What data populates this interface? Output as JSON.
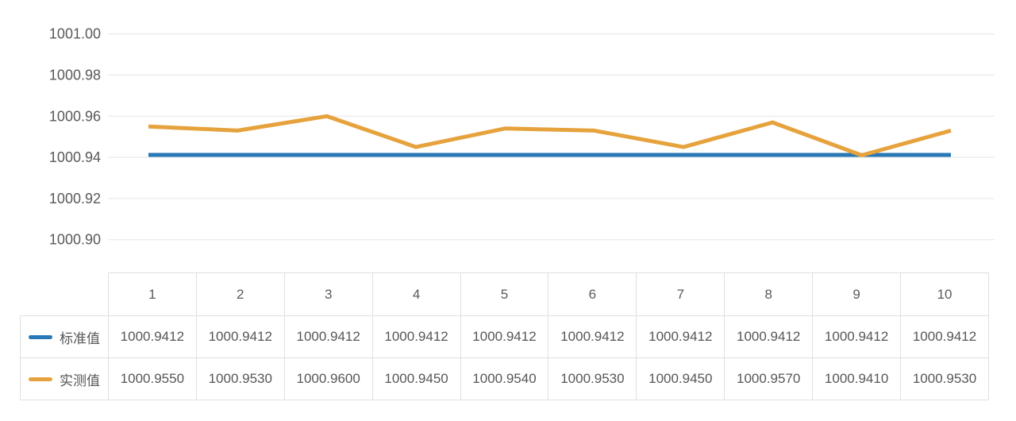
{
  "chart_data": {
    "type": "line",
    "title": "",
    "xlabel": "",
    "ylabel": "",
    "x": [
      1,
      2,
      3,
      4,
      5,
      6,
      7,
      8,
      9,
      10
    ],
    "series": [
      {
        "name": "标准值",
        "color": "#2878b5",
        "values": [
          1000.9412,
          1000.9412,
          1000.9412,
          1000.9412,
          1000.9412,
          1000.9412,
          1000.9412,
          1000.9412,
          1000.9412,
          1000.9412
        ]
      },
      {
        "name": "实测值",
        "color": "#e6a23c",
        "values": [
          1000.955,
          1000.953,
          1000.96,
          1000.945,
          1000.954,
          1000.953,
          1000.945,
          1000.957,
          1000.941,
          1000.953
        ]
      }
    ],
    "ylim": [
      1000.9,
      1001.0
    ],
    "yticks": [
      1001.0,
      1000.98,
      1000.96,
      1000.94,
      1000.92,
      1000.9
    ],
    "ytick_labels": [
      "1001.00",
      "1000.98",
      "1000.96",
      "1000.94",
      "1000.92",
      "1000.90"
    ],
    "grid": true,
    "legend_position": "table-left"
  },
  "table": {
    "column_headers": [
      "1",
      "2",
      "3",
      "4",
      "5",
      "6",
      "7",
      "8",
      "9",
      "10"
    ],
    "rows": [
      {
        "label": "标准值",
        "swatch_color": "#2878b5",
        "values": [
          "1000.9412",
          "1000.9412",
          "1000.9412",
          "1000.9412",
          "1000.9412",
          "1000.9412",
          "1000.9412",
          "1000.9412",
          "1000.9412",
          "1000.9412"
        ]
      },
      {
        "label": "实测值",
        "swatch_color": "#e6a23c",
        "values": [
          "1000.9550",
          "1000.9530",
          "1000.9600",
          "1000.9450",
          "1000.9540",
          "1000.9530",
          "1000.9450",
          "1000.9570",
          "1000.9410",
          "1000.9530"
        ]
      }
    ]
  },
  "colors": {
    "background": "#ffffff",
    "gridline": "#e5e5e5",
    "table_border": "#e0e0e0",
    "text": "#595959",
    "series_standard": "#2878b5",
    "series_measured": "#e6a23c"
  }
}
